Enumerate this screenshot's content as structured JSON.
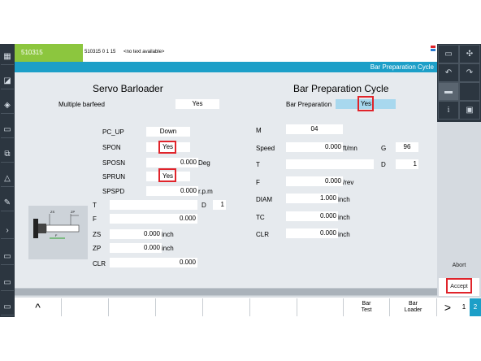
{
  "header": {
    "id": "510315",
    "message_code": "510315 0 1 15",
    "message_text": "<no text available>",
    "screen_title": "Bar Preparation Cycle"
  },
  "servo_barloader": {
    "title": "Servo Barloader",
    "multiple_barfeed_label": "Multiple barfeed",
    "multiple_barfeed_value": "Yes",
    "fields": [
      {
        "label": "PC_UP",
        "value": "Down",
        "unit": ""
      },
      {
        "label": "SPON",
        "value": "Yes",
        "unit": ""
      },
      {
        "label": "SPOSN",
        "value": "0.000",
        "unit": "Deg"
      },
      {
        "label": "SPRUN",
        "value": "Yes",
        "unit": ""
      },
      {
        "label": "SPSPD",
        "value": "0.000",
        "unit": "r.p.m"
      }
    ],
    "t_label": "T",
    "t_value": "",
    "d_label": "D",
    "d_value": "1",
    "f_label": "F",
    "f_value": "0.000",
    "zs_label": "ZS",
    "zs_value": "0.000",
    "zs_unit": "inch",
    "zp_label": "ZP",
    "zp_value": "0.000",
    "zp_unit": "inch",
    "clr_label": "CLR",
    "clr_value": "0.000"
  },
  "bar_prep": {
    "title": "Bar Preparation Cycle",
    "bar_prep_label": "Bar Preparation",
    "bar_prep_value": "Yes",
    "m_label": "M",
    "m_value": "04",
    "speed_label": "Speed",
    "speed_value": "0.000",
    "speed_unit": "ft/mn",
    "g_label": "G",
    "g_value": "96",
    "t_label": "T",
    "t_value": "",
    "d_label": "D",
    "d_value": "1",
    "f_label": "F",
    "f_value": "0.000",
    "f_unit": "/rev",
    "diam_label": "DIAM",
    "diam_value": "1.000",
    "diam_unit": "inch",
    "tc_label": "TC",
    "tc_value": "0.000",
    "tc_unit": "inch",
    "clr_label": "CLR",
    "clr_value": "0.000",
    "clr_unit": "inch"
  },
  "diagram": {
    "zs": "ZS",
    "zp": "ZP",
    "f": "F"
  },
  "softkeys": {
    "up": "^",
    "bar_test_1": "Bar",
    "bar_test_2": "Test",
    "bar_loader_1": "Bar",
    "bar_loader_2": "Loader",
    "next": ">",
    "page1": "1",
    "page2": "2"
  },
  "right_softkeys": {
    "abort": "Abort",
    "accept": "Accept"
  },
  "colors": {
    "accent": "#1c9fc8",
    "header_green": "#8cc63e",
    "highlight": "#e0242b",
    "selected_field": "#a8d8ee"
  }
}
